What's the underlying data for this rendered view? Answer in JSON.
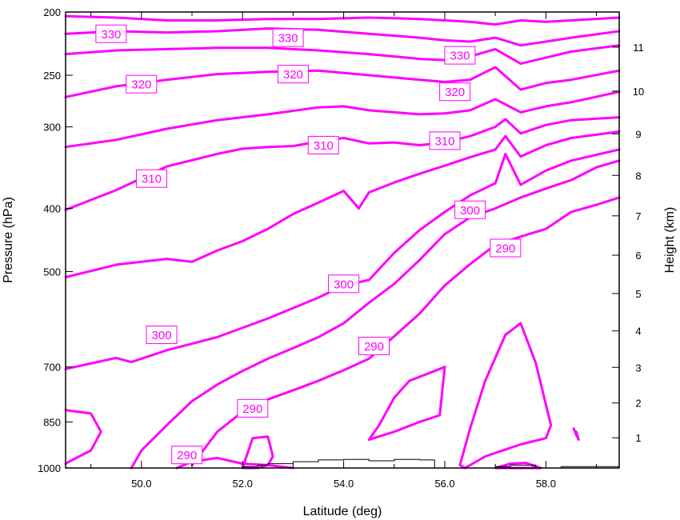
{
  "chart_data": {
    "type": "line",
    "title": "",
    "xlabel": "Latitude (deg)",
    "ylabel": "Pressure (hPa)",
    "y2label": "Height (km)",
    "xlim": [
      48.5,
      59.45
    ],
    "ylim": [
      1000,
      200
    ],
    "yscale": "log",
    "x_ticks": [
      50,
      52,
      54,
      56,
      58
    ],
    "x_tick_labels": [
      "50.0",
      "52.0",
      "54.0",
      "56.0",
      "58.0"
    ],
    "y_ticks": [
      200,
      250,
      300,
      400,
      500,
      700,
      850,
      1000
    ],
    "y_tick_labels": [
      "200",
      "250",
      "300",
      "400",
      "500",
      "700",
      "850",
      "1000"
    ],
    "y2_ticks": [
      1,
      2,
      3,
      4,
      5,
      6,
      7,
      8,
      9,
      10,
      11
    ],
    "y2_tick_labels": [
      "1",
      "2",
      "3",
      "4",
      "5",
      "6",
      "7",
      "8",
      "9",
      "10",
      "11"
    ],
    "line_color": "#ff00ff",
    "grid": false,
    "series": [
      {
        "name": "330",
        "x": [
          48.5,
          49.5,
          50.5,
          51.5,
          52.5,
          53.5,
          54.5,
          55.5,
          56.5,
          57.0,
          57.5,
          58.0,
          58.5,
          59.45
        ],
        "y": [
          203,
          204,
          206,
          206,
          205,
          205,
          204,
          205,
          207,
          209,
          206,
          207,
          206,
          204
        ]
      },
      {
        "name": "330",
        "x": [
          48.5,
          49.5,
          50.5,
          51.5,
          52.5,
          53.5,
          54.5,
          55.5,
          56.0,
          56.5,
          57.0,
          57.5,
          58.0,
          58.5,
          59.45
        ],
        "y": [
          216,
          214,
          215,
          214,
          212,
          213,
          216,
          219,
          221,
          222,
          219,
          225,
          222,
          219,
          214
        ]
      },
      {
        "name": "330",
        "x": [
          48.5,
          49.5,
          50.5,
          51.5,
          52.5,
          53.5,
          54.5,
          55.5,
          56.0,
          56.5,
          57.0,
          57.5,
          58.0,
          58.5,
          59.45
        ],
        "y": [
          232,
          229,
          228,
          227,
          227,
          229,
          232,
          236,
          237,
          234,
          228,
          240,
          235,
          230,
          225
        ]
      },
      {
        "name": "320",
        "x": [
          48.5,
          49.5,
          50.5,
          51.5,
          52.5,
          53.5,
          54.5,
          55.5,
          56.0,
          56.5,
          57.0,
          57.5,
          58.0,
          58.5,
          59.45
        ],
        "y": [
          270,
          260,
          254,
          249,
          247,
          246,
          250,
          254,
          256,
          254,
          243,
          263,
          257,
          254,
          246
        ]
      },
      {
        "name": "320",
        "x": [
          48.5,
          49.5,
          50.5,
          51.5,
          52.5,
          53.5,
          54.0,
          54.5,
          55.5,
          56.0,
          56.5,
          57.0,
          57.5,
          58.0,
          58.5,
          59.45
        ],
        "y": [
          322,
          314,
          302,
          293,
          287,
          280,
          279,
          283,
          287,
          286,
          283,
          272,
          285,
          279,
          275,
          265
        ]
      },
      {
        "name": "310",
        "x": [
          48.5,
          49.5,
          50.5,
          51.5,
          52.0,
          52.5,
          53.0,
          53.5,
          54.0,
          54.5,
          55.0,
          55.5,
          56.0,
          56.5,
          57.0,
          57.2,
          57.5,
          58.0,
          58.5,
          59.45
        ],
        "y": [
          402,
          375,
          345,
          330,
          324,
          322,
          321,
          316,
          312,
          318,
          317,
          320,
          317,
          310,
          300,
          292,
          307,
          298,
          293,
          290
        ]
      },
      {
        "name": "310",
        "x": [
          48.5,
          49.5,
          50.5,
          51.0,
          51.5,
          52.0,
          52.5,
          53.0,
          53.5,
          54.0,
          54.3,
          54.5,
          55.0,
          55.5,
          56.0,
          56.5,
          57.0,
          57.2,
          57.5,
          58.0,
          58.5,
          59.45
        ],
        "y": [
          510,
          488,
          478,
          483,
          464,
          449,
          430,
          408,
          392,
          376,
          400,
          378,
          365,
          354,
          344,
          334,
          325,
          310,
          333,
          320,
          312,
          305
        ]
      },
      {
        "name": "300",
        "x": [
          48.5,
          49.5,
          49.8,
          50.5,
          51.5,
          52.5,
          53.5,
          54.0,
          54.5,
          55.0,
          55.5,
          56.0,
          56.5,
          57.0,
          57.2,
          57.5,
          58.0,
          58.5,
          59.45
        ],
        "y": [
          705,
          678,
          688,
          660,
          630,
          590,
          548,
          525,
          515,
          468,
          432,
          405,
          382,
          366,
          330,
          368,
          350,
          338,
          325
        ]
      },
      {
        "name": "300",
        "x": [
          49.8,
          50.0,
          50.5,
          51.0,
          51.5,
          52.0,
          52.5,
          53.0,
          53.5,
          54.0,
          54.5,
          55.0,
          55.5,
          56.0,
          56.5,
          57.0,
          57.5,
          58.0,
          58.5,
          59.0,
          59.45
        ],
        "y": [
          1000,
          940,
          860,
          790,
          745,
          710,
          680,
          655,
          630,
          600,
          558,
          522,
          480,
          438,
          413,
          400,
          385,
          373,
          362,
          346,
          338
        ]
      },
      {
        "name": "290",
        "x": [
          51.0,
          51.5,
          52.0,
          52.5,
          53.0,
          53.5,
          54.0,
          54.5,
          55.0,
          55.5,
          56.0,
          56.5,
          57.0,
          57.5,
          58.0,
          58.5,
          59.0,
          59.45
        ],
        "y": [
          990,
          880,
          820,
          785,
          760,
          735,
          708,
          680,
          628,
          580,
          525,
          487,
          455,
          442,
          430,
          405,
          395,
          385
        ]
      },
      {
        "name": "290",
        "x": [
          50.7,
          51.0,
          51.5,
          52.0,
          52.5,
          53.0
        ],
        "y": [
          1000,
          978,
          965,
          985,
          990,
          1000
        ]
      },
      {
        "name": "",
        "x": [
          48.5,
          49.0,
          49.2,
          49.0,
          48.6,
          48.5
        ],
        "y": [
          815,
          825,
          880,
          940,
          975,
          985
        ]
      },
      {
        "name": "",
        "x": [
          52.0,
          52.2,
          52.5,
          52.6,
          52.5,
          52.3,
          52.0
        ],
        "y": [
          1000,
          900,
          895,
          960,
          990,
          1000,
          1000
        ]
      },
      {
        "name": "",
        "x": [
          54.5,
          54.7,
          55.0,
          55.3,
          55.7,
          56.0,
          55.9,
          55.5,
          55.0,
          54.5
        ],
        "y": [
          905,
          860,
          780,
          735,
          715,
          700,
          830,
          850,
          880,
          905
        ]
      },
      {
        "name": "",
        "x": [
          56.3,
          56.5,
          56.8,
          57.2,
          57.5,
          57.8,
          58.1,
          58.0,
          57.5,
          56.8,
          56.4,
          56.3
        ],
        "y": [
          990,
          870,
          735,
          625,
          600,
          690,
          860,
          900,
          920,
          960,
          1000,
          990
        ]
      },
      {
        "name": "",
        "x": [
          57.0,
          57.3,
          57.6,
          57.9,
          57.6,
          57.0
        ],
        "y": [
          1000,
          985,
          982,
          1000,
          1000,
          1000
        ]
      },
      {
        "name": "",
        "x": [
          58.55,
          58.6,
          58.65,
          58.6
        ],
        "y": [
          870,
          890,
          905,
          880
        ]
      }
    ],
    "contour_labels": [
      {
        "text": "330",
        "x": 49.4,
        "y": 216
      },
      {
        "text": "330",
        "x": 52.9,
        "y": 219
      },
      {
        "text": "330",
        "x": 56.3,
        "y": 233
      },
      {
        "text": "320",
        "x": 50.0,
        "y": 258
      },
      {
        "text": "320",
        "x": 53.0,
        "y": 249
      },
      {
        "text": "320",
        "x": 56.2,
        "y": 265
      },
      {
        "text": "310",
        "x": 53.6,
        "y": 320
      },
      {
        "text": "310",
        "x": 50.2,
        "y": 360
      },
      {
        "text": "310",
        "x": 56.0,
        "y": 315
      },
      {
        "text": "300",
        "x": 56.5,
        "y": 402
      },
      {
        "text": "300",
        "x": 54.0,
        "y": 522
      },
      {
        "text": "300",
        "x": 50.4,
        "y": 625
      },
      {
        "text": "290",
        "x": 57.2,
        "y": 460
      },
      {
        "text": "290",
        "x": 54.6,
        "y": 650
      },
      {
        "text": "290",
        "x": 52.2,
        "y": 810
      },
      {
        "text": "290",
        "x": 50.9,
        "y": 955
      }
    ],
    "terrain": {
      "x": [
        51.9,
        52.0,
        52.3,
        52.5,
        53.0,
        53.5,
        54.0,
        54.5,
        55.0,
        55.5,
        55.8,
        57.0,
        57.3,
        57.8,
        58.3,
        59.45
      ],
      "y": [
        1000,
        995,
        990,
        985,
        978,
        972,
        970,
        975,
        970,
        972,
        1000,
        995,
        990,
        1000,
        995,
        995
      ]
    }
  }
}
